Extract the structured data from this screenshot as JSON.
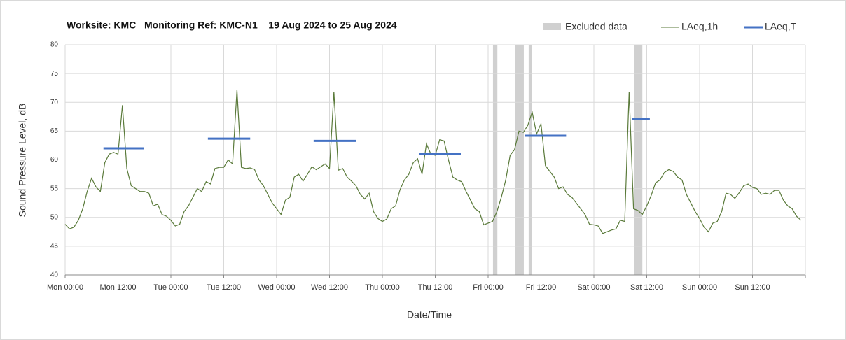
{
  "chart_data": {
    "type": "line",
    "title": "Worksite: KMC   Monitoring Ref: KMC-N1    19 Aug 2024 to 25 Aug 2024",
    "x_label": "Date/Time",
    "y_label": "Sound Pressure Level, dB",
    "xlim": [
      0,
      168
    ],
    "xticks": [
      {
        "value": 0,
        "label": "Mon 00:00"
      },
      {
        "value": 12,
        "label": "Mon 12:00"
      },
      {
        "value": 24,
        "label": "Tue 00:00"
      },
      {
        "value": 36,
        "label": "Tue 12:00"
      },
      {
        "value": 48,
        "label": "Wed 00:00"
      },
      {
        "value": 60,
        "label": "Wed 12:00"
      },
      {
        "value": 72,
        "label": "Thu 00:00"
      },
      {
        "value": 84,
        "label": "Thu 12:00"
      },
      {
        "value": 96,
        "label": "Fri 00:00"
      },
      {
        "value": 108,
        "label": "Fri 12:00"
      },
      {
        "value": 120,
        "label": "Sat 00:00"
      },
      {
        "value": 132,
        "label": "Sat 12:00"
      },
      {
        "value": 144,
        "label": "Sun 00:00"
      },
      {
        "value": 156,
        "label": "Sun 12:00"
      },
      {
        "value": 168,
        "label": ""
      }
    ],
    "ylim": [
      40,
      80
    ],
    "yticks": [
      40,
      45,
      50,
      55,
      60,
      65,
      70,
      75,
      80
    ],
    "grid": true,
    "x": [
      0,
      1,
      2,
      3,
      4,
      5,
      6,
      7,
      8,
      9,
      10,
      11,
      12,
      13,
      14,
      15,
      16,
      17,
      18,
      19,
      20,
      21,
      22,
      23,
      24,
      25,
      26,
      27,
      28,
      29,
      30,
      31,
      32,
      33,
      34,
      35,
      36,
      37,
      38,
      39,
      40,
      41,
      42,
      43,
      44,
      45,
      46,
      47,
      48,
      49,
      50,
      51,
      52,
      53,
      54,
      55,
      56,
      57,
      58,
      59,
      60,
      61,
      62,
      63,
      64,
      65,
      66,
      67,
      68,
      69,
      70,
      71,
      72,
      73,
      74,
      75,
      76,
      77,
      78,
      79,
      80,
      81,
      82,
      83,
      84,
      85,
      86,
      87,
      88,
      89,
      90,
      91,
      92,
      93,
      94,
      95,
      96,
      97,
      98,
      99,
      100,
      101,
      102,
      103,
      104,
      105,
      106,
      107,
      108,
      109,
      110,
      111,
      112,
      113,
      114,
      115,
      116,
      117,
      118,
      119,
      120,
      121,
      122,
      123,
      124,
      125,
      126,
      127,
      128,
      129,
      130,
      131,
      132,
      133,
      134,
      135,
      136,
      137,
      138,
      139,
      140,
      141,
      142,
      143,
      144,
      145,
      146,
      147,
      148,
      149,
      150,
      151,
      152,
      153,
      154,
      155,
      156,
      157,
      158,
      159,
      160,
      161,
      162,
      163,
      164,
      165,
      166,
      167
    ],
    "series": [
      {
        "name": "LAeq,1h",
        "color": "#5a7a3a",
        "values": [
          48.8,
          48,
          48.3,
          49.5,
          51.5,
          54.5,
          56.8,
          55.3,
          54.5,
          59.5,
          61,
          61.3,
          61,
          69.5,
          58.5,
          55.5,
          55,
          54.5,
          54.5,
          54.2,
          52,
          52.3,
          50.5,
          50.2,
          49.5,
          48.5,
          48.8,
          51,
          52,
          53.5,
          55,
          54.5,
          56.2,
          55.8,
          58.5,
          58.7,
          58.7,
          60,
          59.3,
          72.2,
          58.7,
          58.5,
          58.6,
          58.3,
          56.5,
          55.5,
          54,
          52.5,
          51.5,
          50.5,
          53,
          53.5,
          57,
          57.5,
          56.3,
          57.5,
          58.8,
          58.3,
          58.8,
          59.3,
          58.5,
          71.8,
          58.2,
          58.5,
          57,
          56.3,
          55.5,
          54,
          53.2,
          54.2,
          51,
          49.8,
          49.3,
          49.7,
          51.5,
          52,
          54.8,
          56.5,
          57.5,
          59.5,
          60.2,
          57.5,
          62.8,
          61,
          60.8,
          63.5,
          63.3,
          60,
          57,
          56.5,
          56.2,
          54.5,
          53,
          51.5,
          51,
          48.7,
          49,
          49.3,
          51,
          53.5,
          56.5,
          60.8,
          61.8,
          65,
          64.8,
          66,
          68.3,
          64.5,
          66.3,
          59,
          58,
          57,
          55,
          55.3,
          54,
          53.5,
          52.5,
          51.5,
          50.5,
          48.8,
          48.7,
          48.5,
          47.2,
          47.5,
          47.8,
          48,
          49.5,
          49.3,
          71.8,
          51.5,
          51.2,
          50.5,
          52,
          53.8,
          56,
          56.5,
          57.8,
          58.3,
          58,
          57,
          56.5,
          54,
          52.5,
          51,
          49.8,
          48.3,
          47.5,
          49,
          49.3,
          51,
          54.2,
          54,
          53.3,
          54.3,
          55.5,
          55.8,
          55.2,
          55,
          54,
          54.2,
          54,
          54.7,
          54.7,
          53,
          52,
          51.5,
          50.2,
          49.5
        ]
      },
      {
        "name": "LAeq,T",
        "color": "#4472c4",
        "segments": [
          {
            "start": 8.7,
            "end": 17.8,
            "value": 62
          },
          {
            "start": 32.4,
            "end": 42,
            "value": 63.7
          },
          {
            "start": 56.4,
            "end": 66,
            "value": 63.3
          },
          {
            "start": 80.4,
            "end": 89.8,
            "value": 61
          },
          {
            "start": 104.4,
            "end": 113.7,
            "value": 64.2
          },
          {
            "start": 128.6,
            "end": 132.7,
            "value": 67.1
          }
        ]
      }
    ],
    "excluded": {
      "name": "Excluded data",
      "color": "#d0d0d0",
      "ranges": [
        [
          97.1,
          98.1
        ],
        [
          102.2,
          104.1
        ],
        [
          105.2,
          106
        ],
        [
          129.1,
          131
        ]
      ]
    }
  }
}
